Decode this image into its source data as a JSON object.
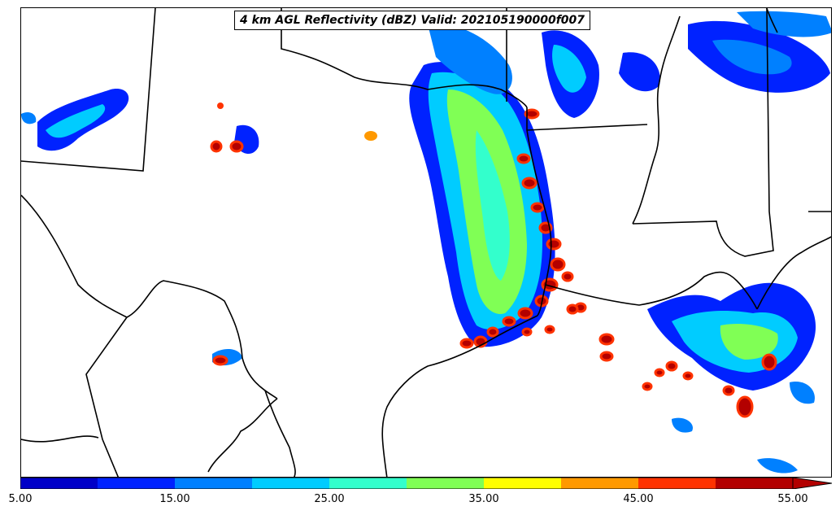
{
  "title": "4 km AGL Reflectivity (dBZ) Valid: 202105190000f007",
  "colorbar": {
    "levels": [
      5,
      10,
      15,
      20,
      25,
      30,
      35,
      40,
      45,
      50,
      55
    ],
    "colors": [
      "#0000c8",
      "#0022ff",
      "#0080ff",
      "#00ccff",
      "#33ffcc",
      "#80ff55",
      "#ffff00",
      "#ff9900",
      "#ff3300",
      "#b30000"
    ],
    "extend": "max",
    "tick_labels": [
      "5.00",
      "15.00",
      "25.00",
      "35.00",
      "45.00",
      "55.00"
    ]
  },
  "map": {
    "region": "Texas and Gulf Coast",
    "boundaries_color": "#000000"
  }
}
